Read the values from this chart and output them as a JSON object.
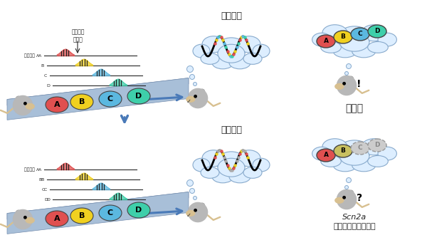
{
  "bg_color": "#ffffff",
  "place_cells_label": "場所細胞の活動",
  "place_cells_label2": "場所細胞 A",
  "replay_label": "リプレイ",
  "wild_type_label": "野生型",
  "ko_label1": "Scn2a",
  "ko_label2": "ノックアウトマウス",
  "cell_colors": [
    "#e05050",
    "#f0d020",
    "#5bb8e0",
    "#3ecfaa"
  ],
  "cell_letters": [
    "A",
    "B",
    "C",
    "D"
  ],
  "track_top_color": "#d0dff0",
  "track_body_color": "#a8bfd8",
  "track_edge_color": "#7890b0",
  "mouse_body_color": "#b8b8b8",
  "mouse_face_color": "#d8c090",
  "arrow_color": "#4a7ab8",
  "thought_fill": "#ddeeff",
  "thought_edge": "#88aacc",
  "line_color": "#252525",
  "label_color": "#252525"
}
